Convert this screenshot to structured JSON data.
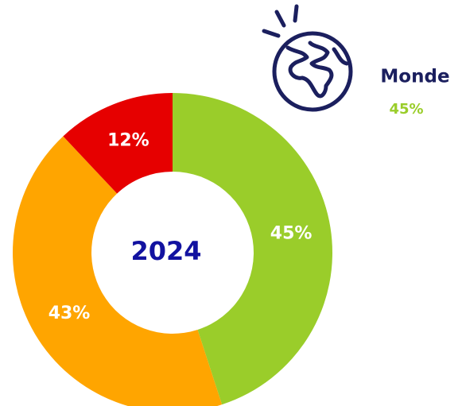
{
  "chart_data": {
    "type": "donut",
    "center_label": "2024",
    "values": [
      45,
      43,
      12
    ],
    "value_labels": [
      "45%",
      "43%",
      "12%"
    ],
    "colors": [
      "#9acd2a",
      "#ffa500",
      "#e60000"
    ],
    "annotation": {
      "text": "Monde",
      "value": 45,
      "value_label": "45%",
      "color": "#9acd2a"
    }
  }
}
